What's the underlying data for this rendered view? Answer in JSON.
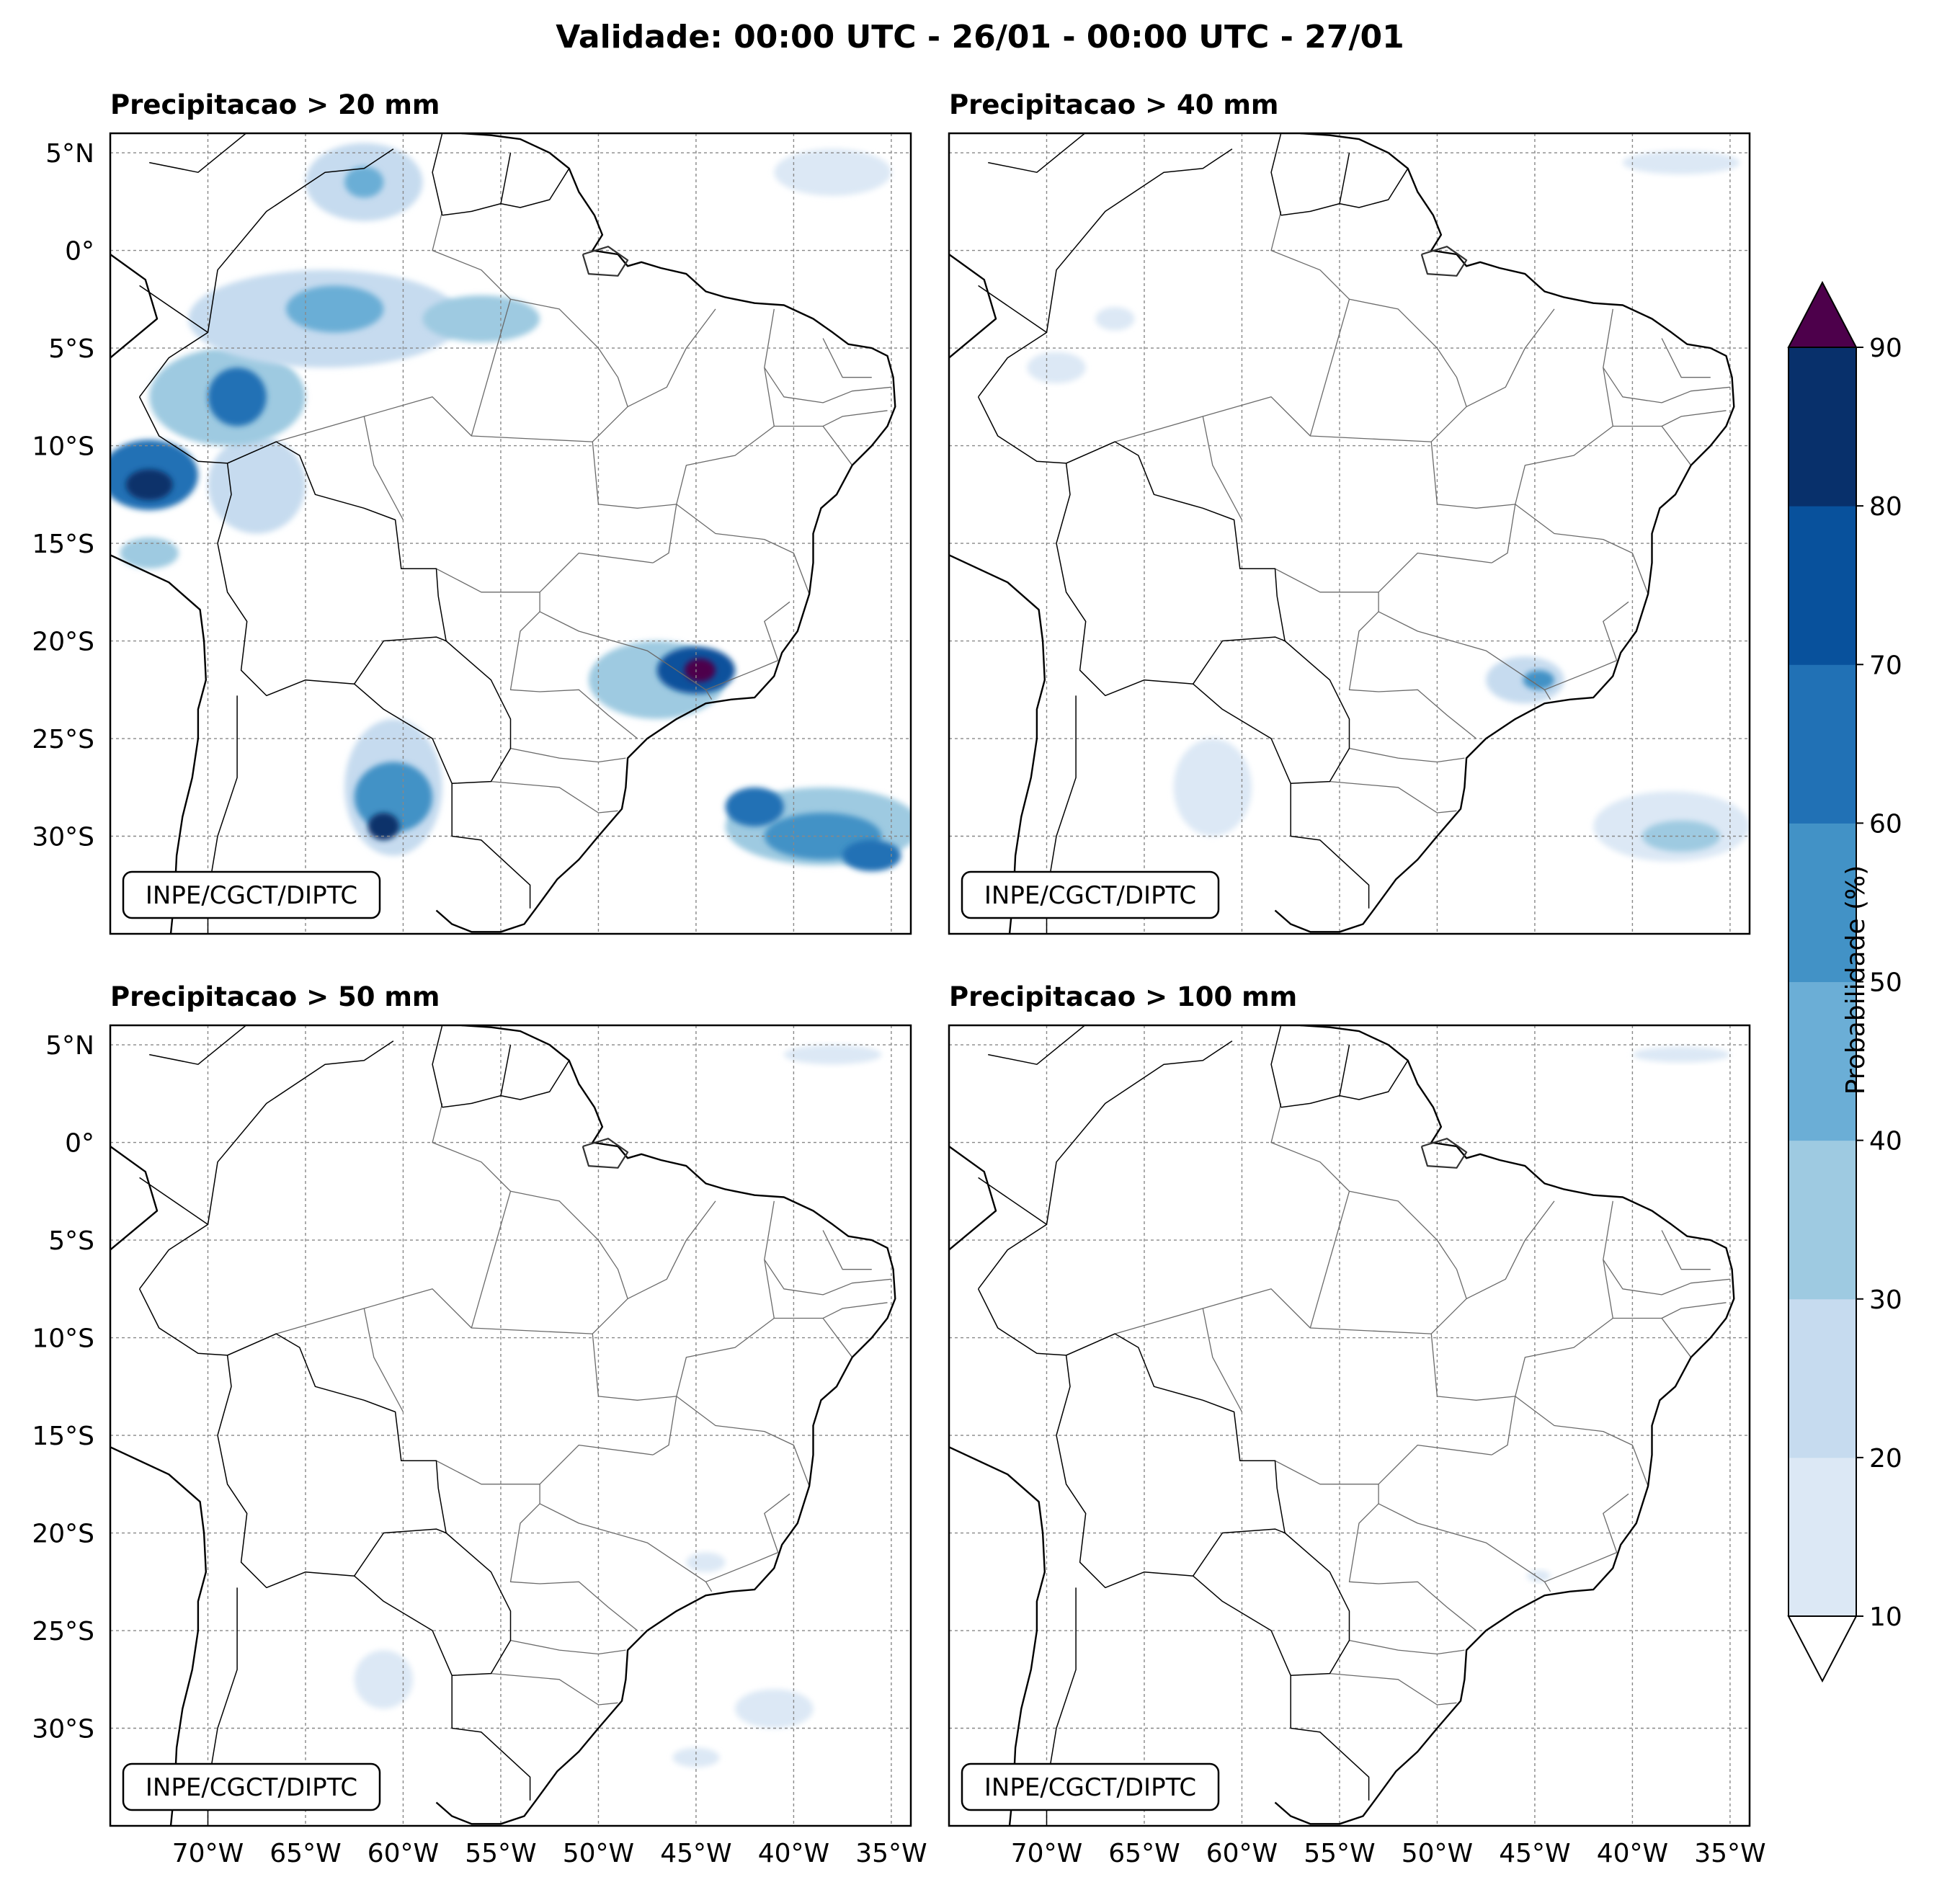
{
  "figure": {
    "title": "Validade: 00:00 UTC - 26/01 - 00:00 UTC - 27/01",
    "credit": "INPE/CGCT/DIPTC"
  },
  "map": {
    "lon_ticks": [
      "70°W",
      "65°W",
      "60°W",
      "55°W",
      "50°W",
      "45°W",
      "40°W",
      "35°W"
    ],
    "lat_ticks": [
      "5°N",
      "0°",
      "5°S",
      "10°S",
      "15°S",
      "20°S",
      "25°S",
      "30°S"
    ],
    "lon_range": [
      -75,
      -34
    ],
    "lat_range": [
      -35,
      6
    ]
  },
  "panels": [
    {
      "title": "Precipitacao > 20 mm",
      "blobs": [
        {
          "lon": -67.5,
          "lat": -12.0,
          "rx": 2.5,
          "ry": 2.5,
          "level": 20
        },
        {
          "lon": -73.0,
          "lat": -11.5,
          "rx": 2.5,
          "ry": 1.8,
          "level": 60
        },
        {
          "lon": -73.0,
          "lat": -12.0,
          "rx": 1.2,
          "ry": 0.8,
          "level": 80
        },
        {
          "lon": -69.0,
          "lat": -7.5,
          "rx": 4.0,
          "ry": 2.5,
          "level": 30
        },
        {
          "lon": -68.5,
          "lat": -7.5,
          "rx": 1.5,
          "ry": 1.5,
          "level": 60
        },
        {
          "lon": -64.0,
          "lat": -3.5,
          "rx": 7.0,
          "ry": 2.5,
          "level": 20
        },
        {
          "lon": -63.5,
          "lat": -3.0,
          "rx": 2.5,
          "ry": 1.2,
          "level": 40
        },
        {
          "lon": -56.0,
          "lat": -3.5,
          "rx": 3.0,
          "ry": 1.2,
          "level": 30
        },
        {
          "lon": -62.0,
          "lat": 3.5,
          "rx": 3.0,
          "ry": 2.0,
          "level": 20
        },
        {
          "lon": -62.0,
          "lat": 3.5,
          "rx": 1.0,
          "ry": 0.8,
          "level": 40
        },
        {
          "lon": -38.0,
          "lat": 4.0,
          "rx": 3.0,
          "ry": 1.2,
          "level": 10
        },
        {
          "lon": -73.0,
          "lat": -15.5,
          "rx": 1.5,
          "ry": 0.8,
          "level": 30
        },
        {
          "lon": -60.5,
          "lat": -27.5,
          "rx": 2.5,
          "ry": 3.5,
          "level": 20
        },
        {
          "lon": -60.5,
          "lat": -28.0,
          "rx": 2.0,
          "ry": 1.8,
          "level": 50
        },
        {
          "lon": -61.0,
          "lat": -29.5,
          "rx": 0.8,
          "ry": 0.7,
          "level": 80
        },
        {
          "lon": -47.0,
          "lat": -22.0,
          "rx": 3.5,
          "ry": 2.0,
          "level": 30
        },
        {
          "lon": -45.0,
          "lat": -21.5,
          "rx": 2.0,
          "ry": 1.2,
          "level": 70
        },
        {
          "lon": -44.8,
          "lat": -21.5,
          "rx": 0.8,
          "ry": 0.6,
          "level": 90
        },
        {
          "lon": -38.5,
          "lat": -29.5,
          "rx": 5.0,
          "ry": 2.0,
          "level": 30
        },
        {
          "lon": -38.5,
          "lat": -30.0,
          "rx": 3.0,
          "ry": 1.2,
          "level": 50
        },
        {
          "lon": -42.0,
          "lat": -28.5,
          "rx": 1.5,
          "ry": 1.0,
          "level": 60
        },
        {
          "lon": -36.0,
          "lat": -31.0,
          "rx": 1.5,
          "ry": 0.8,
          "level": 60
        }
      ]
    },
    {
      "title": "Precipitacao > 40 mm",
      "blobs": [
        {
          "lon": -45.5,
          "lat": -22.0,
          "rx": 2.0,
          "ry": 1.2,
          "level": 20
        },
        {
          "lon": -44.8,
          "lat": -22.0,
          "rx": 0.8,
          "ry": 0.5,
          "level": 50
        },
        {
          "lon": -38.0,
          "lat": -29.5,
          "rx": 4.0,
          "ry": 1.8,
          "level": 10
        },
        {
          "lon": -37.5,
          "lat": -30.0,
          "rx": 2.0,
          "ry": 0.8,
          "level": 30
        },
        {
          "lon": -61.5,
          "lat": -27.5,
          "rx": 2.0,
          "ry": 2.5,
          "level": 10
        },
        {
          "lon": -37.5,
          "lat": 4.5,
          "rx": 3.0,
          "ry": 0.6,
          "level": 10
        },
        {
          "lon": -69.5,
          "lat": -6.0,
          "rx": 1.5,
          "ry": 0.8,
          "level": 10
        },
        {
          "lon": -66.5,
          "lat": -3.5,
          "rx": 1.0,
          "ry": 0.6,
          "level": 10
        }
      ]
    },
    {
      "title": "Precipitacao > 50 mm",
      "blobs": [
        {
          "lon": -38.0,
          "lat": 4.5,
          "rx": 2.5,
          "ry": 0.5,
          "level": 10
        },
        {
          "lon": -41.0,
          "lat": -29.0,
          "rx": 2.0,
          "ry": 1.0,
          "level": 10
        },
        {
          "lon": -61.0,
          "lat": -27.5,
          "rx": 1.5,
          "ry": 1.5,
          "level": 10
        },
        {
          "lon": -44.5,
          "lat": -21.5,
          "rx": 1.0,
          "ry": 0.5,
          "level": 10
        },
        {
          "lon": -45.0,
          "lat": -31.5,
          "rx": 1.2,
          "ry": 0.5,
          "level": 10
        }
      ]
    },
    {
      "title": "Precipitacao > 100 mm",
      "blobs": [
        {
          "lon": -37.5,
          "lat": 4.5,
          "rx": 2.5,
          "ry": 0.4,
          "level": 10
        },
        {
          "lon": -44.8,
          "lat": -22.2,
          "rx": 0.6,
          "ry": 0.3,
          "level": 10
        }
      ]
    }
  ],
  "colorbar": {
    "label": "Probabilidade (%)",
    "ticks": [
      "10",
      "20",
      "30",
      "40",
      "50",
      "60",
      "70",
      "80",
      "90"
    ],
    "levels": [
      10,
      20,
      30,
      40,
      50,
      60,
      70,
      80,
      90
    ],
    "colors": [
      "#dce8f5",
      "#c6dbef",
      "#9ecae1",
      "#6baed6",
      "#4292c6",
      "#2171b5",
      "#08519c",
      "#08306b"
    ],
    "extend_min_color": "#ffffff",
    "extend_max_color": "#4d004b"
  }
}
